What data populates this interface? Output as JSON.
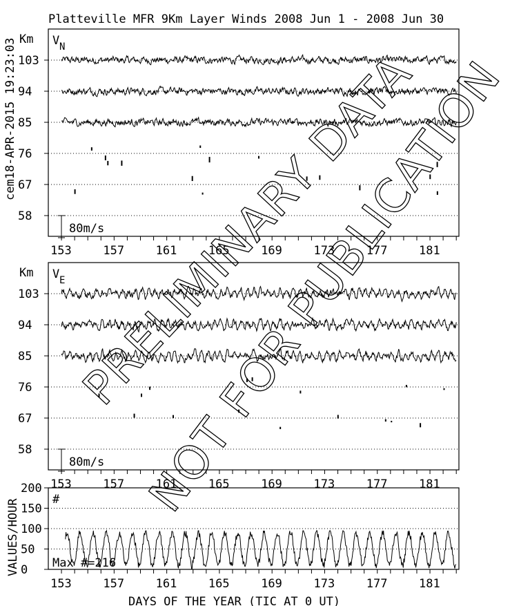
{
  "title": "Platteville MFR 9Km Layer Winds 2008 Jun  1 - 2008 Jun 30",
  "side_stamp": "cem18-APR-2015 19:23:03",
  "watermark": [
    "PRELIMINARY DATA",
    "NOT FOR PUBLICATION"
  ],
  "chart_data": [
    {
      "type": "line",
      "panel": "north",
      "component_label": "V",
      "component_sub": "N",
      "ylabel": "Km",
      "yticks": [
        103,
        94,
        85,
        76,
        67,
        58
      ],
      "xticks": [
        153,
        157,
        161,
        165,
        169,
        173,
        177,
        181
      ],
      "xlim": [
        152,
        183.2
      ],
      "ylim": [
        52,
        112
      ],
      "scale_label": "80m/s",
      "scale_ms": 80,
      "grid": true,
      "series_altitudes_km": [
        103,
        94,
        85
      ],
      "sparse_altitudes_km": [
        76,
        67
      ]
    },
    {
      "type": "line",
      "panel": "east",
      "component_label": "V",
      "component_sub": "E",
      "ylabel": "Km",
      "yticks": [
        103,
        94,
        85,
        76,
        67,
        58
      ],
      "xticks": [
        153,
        157,
        161,
        165,
        169,
        173,
        177,
        181
      ],
      "xlim": [
        152,
        183.2
      ],
      "ylim": [
        52,
        112
      ],
      "scale_label": "80m/s",
      "scale_ms": 80,
      "grid": true,
      "series_altitudes_km": [
        103,
        94,
        85
      ],
      "sparse_altitudes_km": [
        76,
        67
      ]
    },
    {
      "type": "line",
      "panel": "count",
      "ylabel": "VALUES/HOUR",
      "marker_label": "#",
      "annotation": "Max #=216",
      "yticks": [
        200,
        150,
        100,
        50,
        0
      ],
      "ylim": [
        0,
        200
      ],
      "xticks": [
        153,
        157,
        161,
        165,
        169,
        173,
        177,
        181
      ],
      "xlim": [
        152,
        183.2
      ],
      "xlabel": "DAYS OF THE YEAR (TIC AT 0 UT)",
      "grid": true,
      "typical_range": [
        10,
        90
      ]
    }
  ]
}
